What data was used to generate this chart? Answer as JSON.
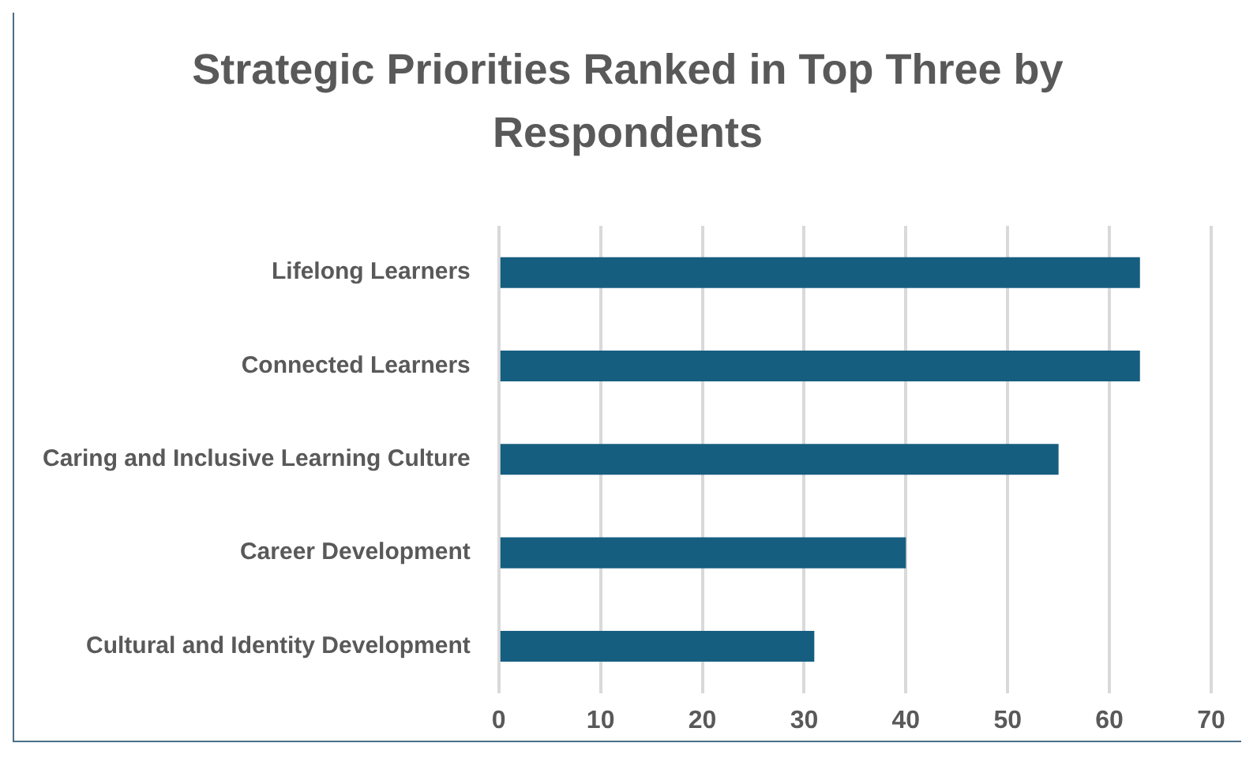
{
  "chart_data": {
    "type": "bar",
    "orientation": "horizontal",
    "title": "Strategic Priorities Ranked in Top Three by Respondents",
    "categories": [
      "Lifelong Learners",
      "Connected Learners",
      "Caring and Inclusive Learning Culture",
      "Career Development",
      "Cultural and Identity Development"
    ],
    "values": [
      63,
      63,
      55,
      40,
      31
    ],
    "color": "#165e80",
    "xlim": [
      0,
      70
    ],
    "xticks": [
      0,
      10,
      20,
      30,
      40,
      50,
      60,
      70
    ],
    "grid": "x",
    "legend": false
  }
}
